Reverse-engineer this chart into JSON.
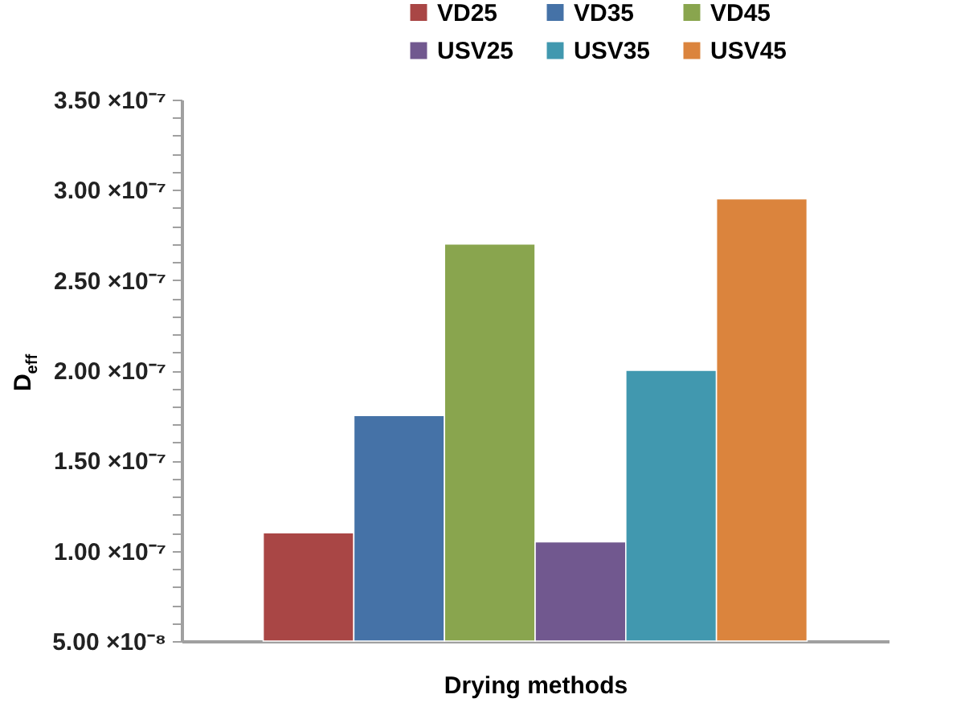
{
  "chart_data": {
    "type": "bar",
    "xlabel": "Drying methods",
    "ylabel": "D$_{eff}$",
    "categories": [
      null
    ],
    "series": [
      {
        "name": "VD25",
        "color": "#a94645",
        "values": [
          1.1e-07
        ]
      },
      {
        "name": "VD35",
        "color": "#4572a7",
        "values": [
          1.75e-07
        ]
      },
      {
        "name": "VD45",
        "color": "#89a54e",
        "values": [
          2.7e-07
        ]
      },
      {
        "name": "USV25",
        "color": "#71588f",
        "values": [
          1.05e-07
        ]
      },
      {
        "name": "USV35",
        "color": "#4198af",
        "values": [
          2e-07
        ]
      },
      {
        "name": "USV45",
        "color": "#db843d",
        "values": [
          2.95e-07
        ]
      }
    ],
    "ylim": [
      5e-08,
      3.5e-07
    ],
    "yticks": [
      {
        "value": 5e-08,
        "label": "5.00 ×10⁻⁸"
      },
      {
        "value": 6e-08,
        "label": null
      },
      {
        "value": 7e-08,
        "label": null
      },
      {
        "value": 8e-08,
        "label": null
      },
      {
        "value": 9e-08,
        "label": null
      },
      {
        "value": 1e-07,
        "label": "1.00 ×10⁻⁷"
      },
      {
        "value": 1.1e-07,
        "label": null
      },
      {
        "value": 1.2e-07,
        "label": null
      },
      {
        "value": 1.3e-07,
        "label": null
      },
      {
        "value": 1.4e-07,
        "label": null
      },
      {
        "value": 1.5e-07,
        "label": "1.50 ×10⁻⁷"
      },
      {
        "value": 1.6e-07,
        "label": null
      },
      {
        "value": 1.7e-07,
        "label": null
      },
      {
        "value": 1.8e-07,
        "label": null
      },
      {
        "value": 1.9e-07,
        "label": null
      },
      {
        "value": 2e-07,
        "label": "2.00 ×10⁻⁷"
      },
      {
        "value": 2.1e-07,
        "label": null
      },
      {
        "value": 2.2e-07,
        "label": null
      },
      {
        "value": 2.3e-07,
        "label": null
      },
      {
        "value": 2.4e-07,
        "label": null
      },
      {
        "value": 2.5e-07,
        "label": "2.50 ×10⁻⁷"
      },
      {
        "value": 2.6e-07,
        "label": null
      },
      {
        "value": 2.7e-07,
        "label": null
      },
      {
        "value": 2.8e-07,
        "label": null
      },
      {
        "value": 2.9e-07,
        "label": null
      },
      {
        "value": 3e-07,
        "label": "3.00 ×10⁻⁷"
      },
      {
        "value": 3.1e-07,
        "label": null
      },
      {
        "value": 3.2e-07,
        "label": null
      },
      {
        "value": 3.3e-07,
        "label": null
      },
      {
        "value": 3.4e-07,
        "label": null
      },
      {
        "value": 3.5e-07,
        "label": "3.50 ×10⁻⁷"
      }
    ],
    "grid": false,
    "legend": "top right"
  }
}
